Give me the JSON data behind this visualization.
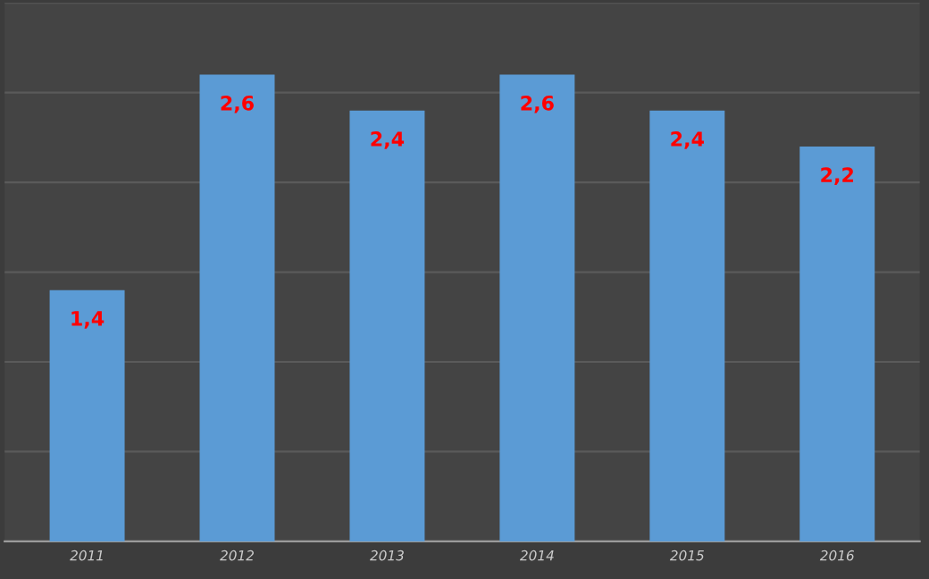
{
  "chart_data": {
    "type": "bar",
    "categories": [
      "2011",
      "2012",
      "2013",
      "2014",
      "2015",
      "2016"
    ],
    "values": [
      1.4,
      2.6,
      2.4,
      2.6,
      2.4,
      2.2
    ],
    "value_labels": [
      "1,4",
      "2,6",
      "2,4",
      "2,6",
      "2,4",
      "2,2"
    ],
    "color": "#5b9bd5",
    "ylim": [
      0,
      3
    ],
    "yticks": [
      {
        "value": 0,
        "label": null
      },
      {
        "value": 0.5,
        "label": null
      },
      {
        "value": 1,
        "label": null
      },
      {
        "value": 1.5,
        "label": null
      },
      {
        "value": 2,
        "label": null
      },
      {
        "value": 2.5,
        "label": null
      },
      {
        "value": 3,
        "label": null
      }
    ],
    "tick_labels": "x",
    "grid": "y"
  }
}
